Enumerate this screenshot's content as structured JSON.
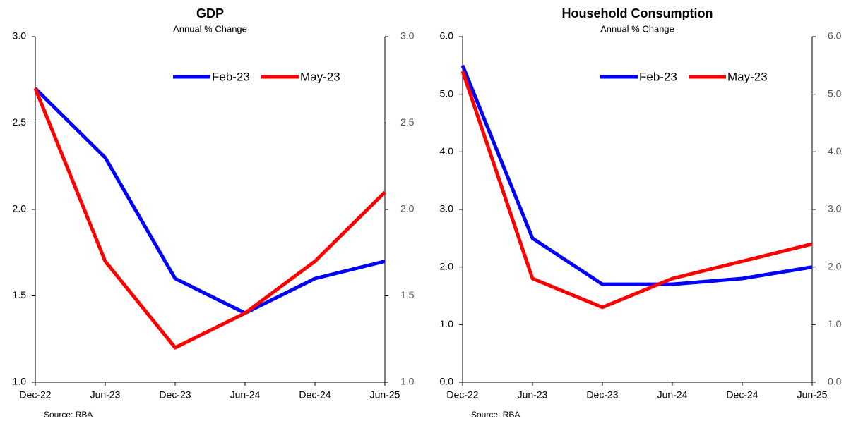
{
  "chart_data": [
    {
      "type": "line",
      "title": "GDP",
      "subtitle": "Annual % Change",
      "source": "Source: RBA",
      "categories": [
        "Dec-22",
        "Jun-23",
        "Dec-23",
        "Jun-24",
        "Dec-24",
        "Jun-25"
      ],
      "series": [
        {
          "name": "Feb-23",
          "color": "#0000ff",
          "values": [
            2.7,
            2.3,
            1.6,
            1.4,
            1.6,
            1.7
          ]
        },
        {
          "name": "May-23",
          "color": "#ff0000",
          "values": [
            2.7,
            1.7,
            1.2,
            1.4,
            1.7,
            2.1
          ]
        }
      ],
      "ylim": [
        1,
        3
      ],
      "yticks": [
        {
          "value": 1,
          "label": "1.0"
        },
        1.5,
        {
          "value": 2,
          "label": "2.0"
        },
        2.5,
        {
          "value": 3,
          "label": "3.0"
        }
      ],
      "y2lim": [
        1,
        3
      ],
      "y2ticks": [
        {
          "value": 1,
          "label": "1.0"
        },
        1.5,
        {
          "value": 2,
          "label": "2.0"
        },
        2.5,
        {
          "value": 3,
          "label": "3.0"
        }
      ],
      "grid": false,
      "legend": "top"
    },
    {
      "type": "line",
      "title": "Household Consumption",
      "subtitle": "Annual % Change",
      "source": "Source: RBA",
      "categories": [
        "Dec-22",
        "Jun-23",
        "Dec-23",
        "Jun-24",
        "Dec-24",
        "Jun-25"
      ],
      "series": [
        {
          "name": "Feb-23",
          "color": "#0000ff",
          "values": [
            5.5,
            2.5,
            1.7,
            1.7,
            1.8,
            2.0
          ]
        },
        {
          "name": "May-23",
          "color": "#ff0000",
          "values": [
            5.4,
            1.8,
            1.3,
            1.8,
            2.1,
            2.4
          ]
        }
      ],
      "ylim": [
        0,
        6
      ],
      "yticks": [
        {
          "value": 0,
          "label": "0.0"
        },
        {
          "value": 1,
          "label": "1.0"
        },
        {
          "value": 2,
          "label": "2.0"
        },
        {
          "value": 3,
          "label": "3.0"
        },
        {
          "value": 4,
          "label": "4.0"
        },
        {
          "value": 5,
          "label": "5.0"
        },
        {
          "value": 6,
          "label": "6.0"
        }
      ],
      "y2lim": [
        0,
        6
      ],
      "y2ticks": [
        {
          "value": 0,
          "label": "0.0"
        },
        {
          "value": 1,
          "label": "1.0"
        },
        {
          "value": 2,
          "label": "2.0"
        },
        {
          "value": 3,
          "label": "3.0"
        },
        {
          "value": 4,
          "label": "4.0"
        },
        {
          "value": 5,
          "label": "5.0"
        },
        {
          "value": 6,
          "label": "6.0"
        }
      ],
      "grid": false,
      "legend": "top"
    }
  ]
}
